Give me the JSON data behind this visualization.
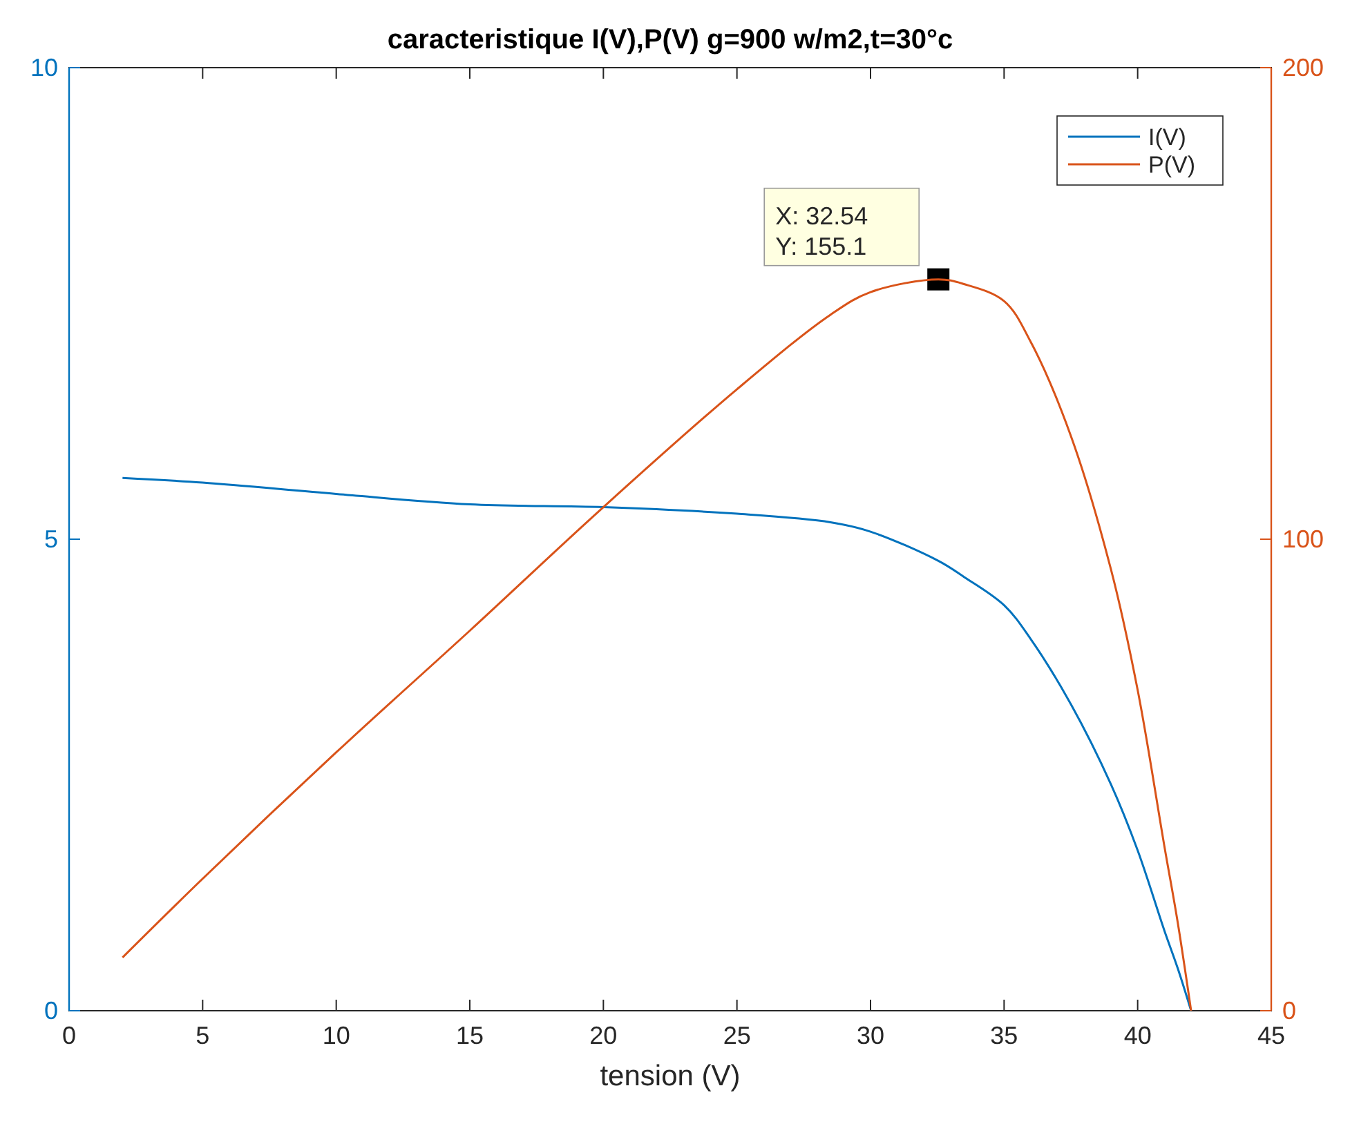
{
  "chart_data": {
    "type": "line",
    "title": "caracteristique I(V),P(V) g=900 w/m2,t=30°c",
    "xlabel": "tension (V)",
    "xlim": [
      0,
      45
    ],
    "xticks": [
      0,
      5,
      10,
      15,
      20,
      25,
      30,
      35,
      40,
      45
    ],
    "ylim": [
      0,
      10
    ],
    "yticks": [
      0,
      5,
      10
    ],
    "y2lim": [
      0,
      200
    ],
    "y2ticks": [
      0,
      100,
      200
    ],
    "legend": "top right",
    "grid": false,
    "marker": "none",
    "line_style": "solid",
    "annotations": [
      "X: 32.54\nY: 155.1"
    ],
    "series": [
      {
        "name": "I(V)",
        "color": "#0072bd",
        "x": [
          2,
          5,
          10,
          15,
          20,
          25,
          28.5,
          30,
          32.54,
          33.5,
          35,
          36,
          37.5,
          39,
          40,
          41,
          41.5,
          42
        ],
        "values": [
          5.65,
          5.6,
          5.48,
          5.37,
          5.34,
          5.27,
          5.18,
          5.08,
          4.77,
          4.6,
          4.3,
          3.94,
          3.25,
          2.4,
          1.7,
          0.85,
          0.45,
          0
        ]
      },
      {
        "name": "P(V)",
        "color": "#d95319",
        "axis": "y2",
        "x": [
          2,
          5,
          10,
          15,
          20,
          25,
          28.5,
          30,
          32.54,
          33.5,
          35,
          36,
          37.5,
          39,
          40,
          41,
          41.5,
          42
        ],
        "values": [
          11.3,
          28,
          54.8,
          80.6,
          106.8,
          131.8,
          147.6,
          152.4,
          155.1,
          154.1,
          150.5,
          141.8,
          121.9,
          93.6,
          68,
          34.9,
          18.7,
          0
        ]
      }
    ]
  }
}
